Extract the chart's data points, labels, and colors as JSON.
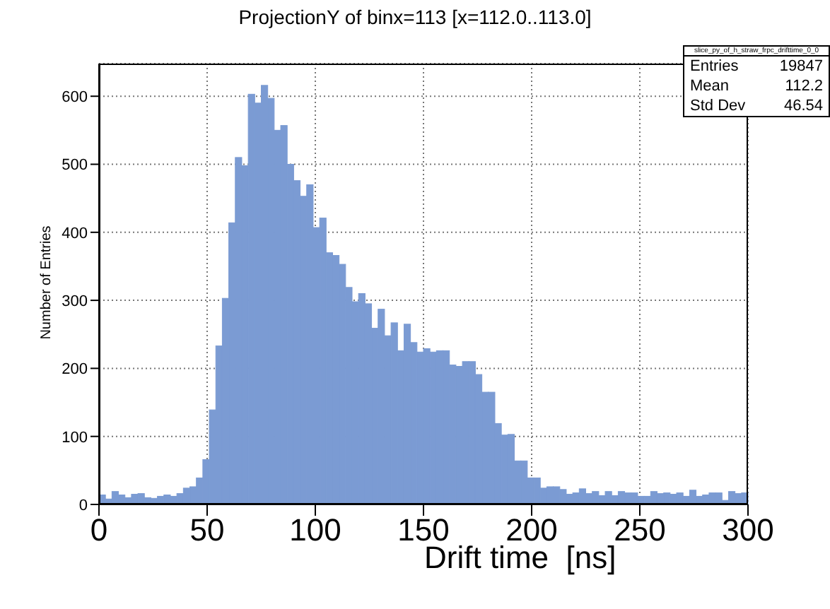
{
  "chart_data": {
    "type": "histogram",
    "title": "ProjectionY of binx=113 [x=112.0..113.0]",
    "xlabel": "Drift time  [ns]",
    "ylabel": "Number of Entries",
    "bins": [
      0,
      3,
      6,
      9,
      12,
      15,
      18,
      21,
      24,
      27,
      30,
      33,
      36,
      39,
      42,
      45,
      48,
      51,
      54,
      57,
      60,
      63,
      66,
      69,
      72,
      75,
      78,
      81,
      84,
      87,
      90,
      93,
      96,
      99,
      102,
      105,
      108,
      111,
      114,
      117,
      120,
      123,
      126,
      129,
      132,
      135,
      138,
      141,
      144,
      147,
      150,
      153,
      156,
      159,
      162,
      165,
      168,
      171,
      174,
      177,
      180,
      183,
      186,
      189,
      192,
      195,
      198,
      201,
      204,
      207,
      210,
      213,
      216,
      219,
      222,
      225,
      228,
      231,
      234,
      237,
      240,
      243,
      246,
      249,
      252,
      255,
      258,
      261,
      264,
      267,
      270,
      273,
      276,
      279,
      282,
      285,
      288,
      291,
      294,
      297,
      300
    ],
    "values": [
      14,
      8,
      19,
      14,
      10,
      15,
      16,
      10,
      9,
      12,
      14,
      12,
      16,
      24,
      26,
      39,
      66,
      139,
      233,
      303,
      414,
      510,
      498,
      603,
      590,
      616,
      597,
      550,
      557,
      500,
      476,
      453,
      470,
      407,
      421,
      370,
      366,
      353,
      319,
      298,
      310,
      295,
      259,
      287,
      248,
      267,
      226,
      265,
      238,
      224,
      229,
      224,
      226,
      226,
      205,
      203,
      210,
      210,
      191,
      165,
      165,
      119,
      102,
      103,
      64,
      64,
      39,
      39,
      24,
      26,
      26,
      22,
      15,
      17,
      23,
      16,
      19,
      13,
      19,
      13,
      19,
      17,
      17,
      12,
      12,
      19,
      16,
      17,
      15,
      17,
      12,
      21,
      12,
      14,
      17,
      17,
      6,
      19,
      16,
      17
    ],
    "color": "#7b9bd3",
    "xlim": [
      0,
      300
    ],
    "xticks": [
      0,
      50,
      100,
      150,
      200,
      250,
      300
    ],
    "ylim": [
      0,
      648
    ],
    "yticks": [
      0,
      100,
      200,
      300,
      400,
      500,
      600
    ],
    "grid": true,
    "annotations": [
      "slice_py_of_h_straw_frpc_drifttime_0_0",
      "Entries",
      "19847",
      "Mean",
      "112.2",
      "Std Dev",
      "46.54"
    ]
  }
}
